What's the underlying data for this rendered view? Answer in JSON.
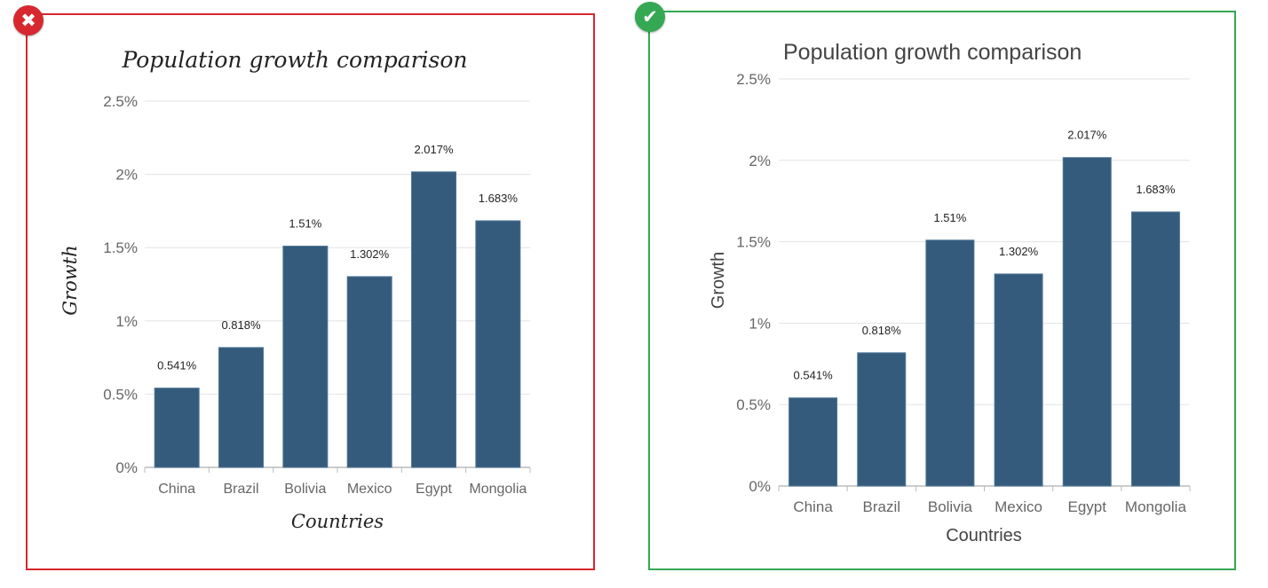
{
  "colors": {
    "bad_border": "#d7282f",
    "good_border": "#35a853",
    "bar": "#345b7c",
    "grid": "#e3e3e3",
    "axis_text": "#666666",
    "label_text": "#222222"
  },
  "badges": {
    "bad_icon": "cross-icon",
    "bad_glyph": "✖",
    "good_icon": "check-icon",
    "good_glyph": "✔"
  },
  "chart_data": [
    {
      "id": "bad-example",
      "type": "bar",
      "title": "Population growth comparison",
      "xlabel": "Countries",
      "ylabel": "Growth",
      "categories": [
        "China",
        "Brazil",
        "Bolivia",
        "Mexico",
        "Egypt",
        "Mongolia"
      ],
      "values": [
        0.541,
        0.818,
        1.51,
        1.302,
        2.017,
        1.683
      ],
      "data_labels": [
        "0.541%",
        "0.818%",
        "1.51%",
        "1.302%",
        "2.017%",
        "1.683%"
      ],
      "ylim": [
        0,
        2.5
      ],
      "yticks": [
        0,
        0.5,
        1,
        1.5,
        2,
        2.5
      ],
      "ytick_labels": [
        "0%",
        "0.5%",
        "1%",
        "1.5%",
        "2%",
        "2.5%"
      ],
      "grid": true,
      "font_style": "handwritten"
    },
    {
      "id": "good-example",
      "type": "bar",
      "title": "Population growth comparison",
      "xlabel": "Countries",
      "ylabel": "Growth",
      "categories": [
        "China",
        "Brazil",
        "Bolivia",
        "Mexico",
        "Egypt",
        "Mongolia"
      ],
      "values": [
        0.541,
        0.818,
        1.51,
        1.302,
        2.017,
        1.683
      ],
      "data_labels": [
        "0.541%",
        "0.818%",
        "1.51%",
        "1.302%",
        "2.017%",
        "1.683%"
      ],
      "ylim": [
        0,
        2.5
      ],
      "yticks": [
        0,
        0.5,
        1,
        1.5,
        2,
        2.5
      ],
      "ytick_labels": [
        "0%",
        "0.5%",
        "1%",
        "1.5%",
        "2%",
        "2.5%"
      ],
      "grid": true,
      "font_style": "plain"
    }
  ]
}
